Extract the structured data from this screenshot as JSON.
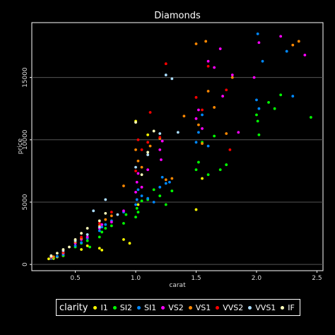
{
  "chart_data": {
    "type": "scatter",
    "title": "Diamonds",
    "xlabel": "carat",
    "ylabel": "price",
    "xlim": [
      0.14,
      2.55
    ],
    "ylim": [
      -500,
      19400
    ],
    "x_ticks": [
      0.5,
      1.0,
      1.5,
      2.0,
      2.5
    ],
    "x_tick_labels": [
      "0.5",
      "1.0",
      "1.5",
      "2.0",
      "2.5"
    ],
    "y_ticks": [
      0,
      5000,
      10000,
      15000
    ],
    "y_tick_labels": [
      "0",
      "5000",
      "10000",
      "15000"
    ],
    "grid": "horizontal",
    "background": "#000000",
    "legend": {
      "title": "clarity",
      "placement": "bottom",
      "entries": [
        "I1",
        "SI2",
        "SI1",
        "VS2",
        "VS1",
        "VVS2",
        "VVS1",
        "IF"
      ]
    },
    "series": [
      {
        "name": "I1",
        "color": "#ffff00",
        "points": [
          [
            0.28,
            450
          ],
          [
            0.3,
            520
          ],
          [
            0.32,
            480
          ],
          [
            0.35,
            600
          ],
          [
            0.4,
            700
          ],
          [
            0.55,
            1200
          ],
          [
            0.6,
            1500
          ],
          [
            0.7,
            1300
          ],
          [
            0.72,
            1150
          ],
          [
            0.9,
            2000
          ],
          [
            0.95,
            1700
          ],
          [
            1.0,
            11500
          ],
          [
            1.02,
            4800
          ],
          [
            1.1,
            10400
          ],
          [
            1.5,
            4400
          ],
          [
            1.55,
            6900
          ]
        ]
      },
      {
        "name": "SI2",
        "color": "#00ff00",
        "points": [
          [
            0.3,
            500
          ],
          [
            0.32,
            560
          ],
          [
            0.4,
            720
          ],
          [
            0.5,
            1400
          ],
          [
            0.55,
            1700
          ],
          [
            0.6,
            1900
          ],
          [
            0.62,
            1400
          ],
          [
            0.7,
            2200
          ],
          [
            0.72,
            2600
          ],
          [
            0.75,
            2900
          ],
          [
            0.8,
            3100
          ],
          [
            0.9,
            3300
          ],
          [
            0.92,
            4000
          ],
          [
            1.0,
            3800
          ],
          [
            1.01,
            4500
          ],
          [
            1.02,
            4200
          ],
          [
            1.05,
            5100
          ],
          [
            1.1,
            5200
          ],
          [
            1.15,
            6000
          ],
          [
            1.2,
            5500
          ],
          [
            1.25,
            4800
          ],
          [
            1.3,
            5900
          ],
          [
            1.5,
            7600
          ],
          [
            1.52,
            8200
          ],
          [
            1.55,
            9800
          ],
          [
            1.6,
            7200
          ],
          [
            1.7,
            7600
          ],
          [
            1.75,
            8000
          ],
          [
            2.0,
            12000
          ],
          [
            2.01,
            11500
          ],
          [
            2.02,
            10400
          ],
          [
            2.1,
            13000
          ],
          [
            2.15,
            12500
          ],
          [
            2.2,
            13600
          ],
          [
            2.45,
            11800
          ],
          [
            1.65,
            10300
          ]
        ]
      },
      {
        "name": "SI1",
        "color": "#0088ff",
        "points": [
          [
            0.3,
            480
          ],
          [
            0.35,
            650
          ],
          [
            0.4,
            800
          ],
          [
            0.5,
            1500
          ],
          [
            0.55,
            1750
          ],
          [
            0.6,
            2100
          ],
          [
            0.7,
            2700
          ],
          [
            0.72,
            3000
          ],
          [
            0.75,
            3200
          ],
          [
            0.8,
            3500
          ],
          [
            0.9,
            4200
          ],
          [
            1.0,
            4800
          ],
          [
            1.01,
            5200
          ],
          [
            1.02,
            6000
          ],
          [
            1.05,
            5500
          ],
          [
            1.1,
            5300
          ],
          [
            1.15,
            5000
          ],
          [
            1.2,
            6200
          ],
          [
            1.22,
            7000
          ],
          [
            1.25,
            6500
          ],
          [
            1.28,
            6600
          ],
          [
            1.5,
            9800
          ],
          [
            1.52,
            10600
          ],
          [
            1.55,
            12000
          ],
          [
            1.6,
            9500
          ],
          [
            2.0,
            13200
          ],
          [
            2.01,
            18500
          ],
          [
            2.05,
            16300
          ],
          [
            2.25,
            17100
          ],
          [
            2.3,
            13500
          ],
          [
            2.02,
            12500
          ]
        ]
      },
      {
        "name": "VS2",
        "color": "#ff00ff",
        "points": [
          [
            0.31,
            600
          ],
          [
            0.4,
            900
          ],
          [
            0.5,
            1700
          ],
          [
            0.55,
            2000
          ],
          [
            0.6,
            2200
          ],
          [
            0.7,
            2900
          ],
          [
            0.72,
            3200
          ],
          [
            0.8,
            3400
          ],
          [
            0.9,
            4300
          ],
          [
            1.0,
            5800
          ],
          [
            1.01,
            6600
          ],
          [
            1.02,
            7300
          ],
          [
            1.05,
            6200
          ],
          [
            1.1,
            7600
          ],
          [
            1.2,
            9200
          ],
          [
            1.21,
            8400
          ],
          [
            1.22,
            9900
          ],
          [
            1.5,
            11700
          ],
          [
            1.52,
            12400
          ],
          [
            1.55,
            10900
          ],
          [
            1.6,
            16300
          ],
          [
            1.7,
            17300
          ],
          [
            1.72,
            13500
          ],
          [
            1.8,
            15200
          ],
          [
            1.85,
            10600
          ],
          [
            1.98,
            15000
          ],
          [
            2.02,
            17800
          ],
          [
            2.2,
            18300
          ],
          [
            2.4,
            16800
          ],
          [
            1.65,
            15800
          ]
        ]
      },
      {
        "name": "VS1",
        "color": "#ff8800",
        "points": [
          [
            0.32,
            620
          ],
          [
            0.4,
            950
          ],
          [
            0.5,
            1800
          ],
          [
            0.55,
            2100
          ],
          [
            0.7,
            3100
          ],
          [
            0.75,
            3600
          ],
          [
            0.8,
            3900
          ],
          [
            0.9,
            6300
          ],
          [
            1.0,
            9200
          ],
          [
            1.02,
            8300
          ],
          [
            1.05,
            7800
          ],
          [
            1.1,
            8800
          ],
          [
            1.12,
            9500
          ],
          [
            1.2,
            10100
          ],
          [
            1.25,
            6800
          ],
          [
            1.3,
            6900
          ],
          [
            1.4,
            11900
          ],
          [
            1.5,
            17700
          ],
          [
            1.52,
            11200
          ],
          [
            1.55,
            9700
          ],
          [
            1.58,
            17900
          ],
          [
            1.6,
            13900
          ],
          [
            1.65,
            12600
          ],
          [
            1.75,
            10500
          ],
          [
            1.8,
            15000
          ],
          [
            2.3,
            17600
          ],
          [
            2.35,
            17900
          ]
        ]
      },
      {
        "name": "VVS2",
        "color": "#ff0000",
        "points": [
          [
            0.3,
            560
          ],
          [
            0.4,
            1000
          ],
          [
            0.55,
            2200
          ],
          [
            0.7,
            3300
          ],
          [
            0.8,
            4200
          ],
          [
            1.0,
            7500
          ],
          [
            1.02,
            10000
          ],
          [
            1.05,
            9200
          ],
          [
            1.1,
            9800
          ],
          [
            1.12,
            12200
          ],
          [
            1.2,
            10200
          ],
          [
            1.25,
            16100
          ],
          [
            1.5,
            13400
          ],
          [
            1.55,
            12400
          ],
          [
            1.6,
            15900
          ],
          [
            1.75,
            14000
          ],
          [
            1.78,
            9200
          ]
        ]
      },
      {
        "name": "VVS1",
        "color": "#aaddff",
        "points": [
          [
            0.3,
            640
          ],
          [
            0.4,
            1100
          ],
          [
            0.5,
            1900
          ],
          [
            0.6,
            2400
          ],
          [
            0.65,
            4300
          ],
          [
            0.7,
            3000
          ],
          [
            0.75,
            5200
          ],
          [
            0.85,
            4000
          ],
          [
            1.0,
            7800
          ],
          [
            1.1,
            8800
          ],
          [
            1.2,
            10500
          ],
          [
            1.25,
            15200
          ],
          [
            1.3,
            14900
          ],
          [
            1.35,
            10600
          ]
        ]
      },
      {
        "name": "IF",
        "color": "#ffffbb",
        "points": [
          [
            0.3,
            700
          ],
          [
            0.35,
            900
          ],
          [
            0.4,
            1200
          ],
          [
            0.45,
            1400
          ],
          [
            0.5,
            2000
          ],
          [
            0.55,
            2500
          ],
          [
            0.6,
            2900
          ],
          [
            0.7,
            3500
          ],
          [
            0.75,
            4100
          ],
          [
            1.0,
            11400
          ],
          [
            1.05,
            7200
          ],
          [
            1.1,
            9000
          ],
          [
            1.15,
            10700
          ]
        ]
      }
    ]
  }
}
